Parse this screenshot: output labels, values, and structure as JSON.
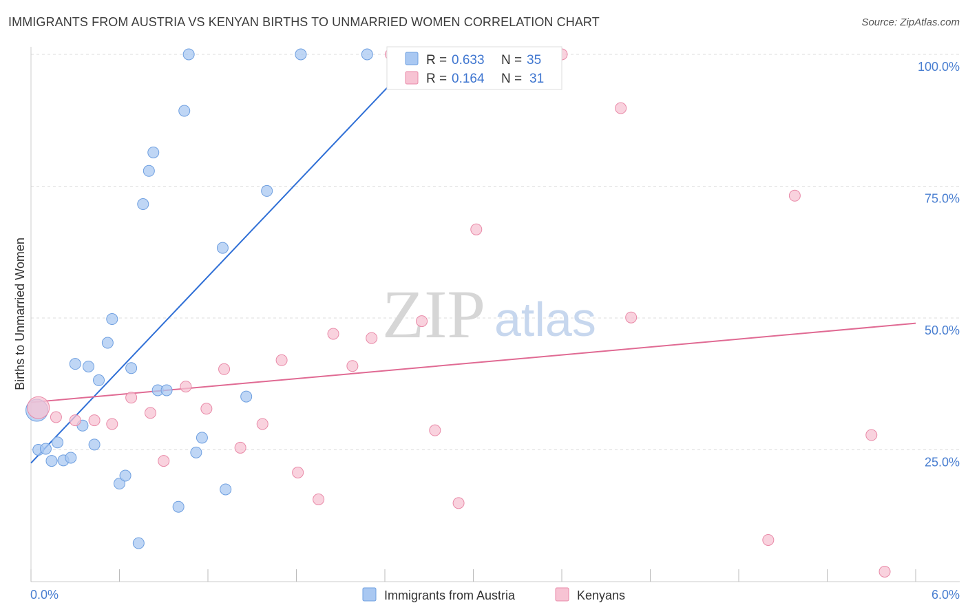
{
  "title": "IMMIGRANTS FROM AUSTRIA VS KENYAN BIRTHS TO UNMARRIED WOMEN CORRELATION CHART",
  "source": "Source: ZipAtlas.com",
  "watermark": {
    "zip": "ZIP",
    "atlas": "atlas"
  },
  "colors": {
    "blue": "#a9c8f2",
    "blue_stroke": "#6e9fe0",
    "blue_line": "#2f6fd6",
    "pink": "#f7c3d3",
    "pink_stroke": "#e98aa8",
    "pink_line": "#e06a93",
    "axis_text": "#4a7fd1"
  },
  "legend_box": {
    "rows": [
      {
        "r_label": "R =",
        "r_value": "0.633",
        "n_label": "N =",
        "n_value": "35"
      },
      {
        "r_label": "R =",
        "r_value": "0.164",
        "n_label": "N =",
        "n_value": "31"
      }
    ]
  },
  "bottom_legend": [
    "Immigrants from Austria",
    "Kenyans"
  ],
  "chart_data": {
    "type": "scatter",
    "title": "IMMIGRANTS FROM AUSTRIA VS KENYAN BIRTHS TO UNMARRIED WOMEN CORRELATION CHART",
    "xlabel": "",
    "ylabel": "Births to Unmarried Women",
    "xlim": [
      0,
      6
    ],
    "ylim": [
      0,
      100
    ],
    "x_tick_labels": [
      "0.0%",
      "6.0%"
    ],
    "y_tick_labels": [
      "100.0%",
      "75.0%",
      "50.0%",
      "25.0%"
    ],
    "y_ticks": [
      100,
      75,
      50,
      25
    ],
    "grid": true,
    "legend_position": "top-center",
    "series": [
      {
        "name": "Immigrants from Austria",
        "color": "#a9c8f2",
        "trend": {
          "r": 0.633,
          "n": 35,
          "x": [
            0.0,
            2.63
          ],
          "y": [
            22.5,
            100
          ]
        },
        "points": [
          {
            "x": 0.04,
            "y": 32.5,
            "big": true
          },
          {
            "x": 0.05,
            "y": 25.0
          },
          {
            "x": 0.1,
            "y": 25.2
          },
          {
            "x": 0.14,
            "y": 22.9
          },
          {
            "x": 0.18,
            "y": 26.4
          },
          {
            "x": 0.22,
            "y": 23.0
          },
          {
            "x": 0.27,
            "y": 23.5
          },
          {
            "x": 0.3,
            "y": 41.3
          },
          {
            "x": 0.35,
            "y": 29.6
          },
          {
            "x": 0.39,
            "y": 40.8
          },
          {
            "x": 0.43,
            "y": 26.0
          },
          {
            "x": 0.46,
            "y": 38.2
          },
          {
            "x": 0.52,
            "y": 45.3
          },
          {
            "x": 0.55,
            "y": 49.8
          },
          {
            "x": 0.6,
            "y": 18.6
          },
          {
            "x": 0.64,
            "y": 20.1
          },
          {
            "x": 0.68,
            "y": 40.5
          },
          {
            "x": 0.73,
            "y": 7.3
          },
          {
            "x": 0.76,
            "y": 71.6
          },
          {
            "x": 0.8,
            "y": 77.9
          },
          {
            "x": 0.83,
            "y": 81.4
          },
          {
            "x": 0.86,
            "y": 36.3
          },
          {
            "x": 0.92,
            "y": 36.3
          },
          {
            "x": 1.0,
            "y": 14.2
          },
          {
            "x": 1.04,
            "y": 89.3
          },
          {
            "x": 1.07,
            "y": 100.0
          },
          {
            "x": 1.12,
            "y": 24.5
          },
          {
            "x": 1.16,
            "y": 27.3
          },
          {
            "x": 1.3,
            "y": 63.3
          },
          {
            "x": 1.32,
            "y": 17.5
          },
          {
            "x": 1.46,
            "y": 35.1
          },
          {
            "x": 1.6,
            "y": 74.1
          },
          {
            "x": 1.83,
            "y": 100.0
          },
          {
            "x": 2.28,
            "y": 100.0
          },
          {
            "x": 3.13,
            "y": 100.0
          }
        ]
      },
      {
        "name": "Kenyans",
        "color": "#f7c3d3",
        "trend": {
          "r": 0.164,
          "n": 31,
          "x": [
            0.0,
            6.0
          ],
          "y": [
            34.0,
            49.0
          ]
        },
        "points": [
          {
            "x": 0.05,
            "y": 33.0,
            "big": true
          },
          {
            "x": 0.17,
            "y": 31.2
          },
          {
            "x": 0.3,
            "y": 30.6
          },
          {
            "x": 0.43,
            "y": 30.6
          },
          {
            "x": 0.55,
            "y": 29.9
          },
          {
            "x": 0.68,
            "y": 34.9
          },
          {
            "x": 0.81,
            "y": 32.0
          },
          {
            "x": 0.9,
            "y": 22.9
          },
          {
            "x": 1.05,
            "y": 37.0
          },
          {
            "x": 1.19,
            "y": 32.8
          },
          {
            "x": 1.31,
            "y": 40.3
          },
          {
            "x": 1.42,
            "y": 25.4
          },
          {
            "x": 1.57,
            "y": 29.9
          },
          {
            "x": 1.7,
            "y": 42.0
          },
          {
            "x": 1.81,
            "y": 20.7
          },
          {
            "x": 1.95,
            "y": 15.6
          },
          {
            "x": 2.05,
            "y": 47.0
          },
          {
            "x": 2.18,
            "y": 40.9
          },
          {
            "x": 2.31,
            "y": 46.2
          },
          {
            "x": 2.44,
            "y": 100.0
          },
          {
            "x": 2.65,
            "y": 49.4
          },
          {
            "x": 2.74,
            "y": 28.7
          },
          {
            "x": 2.9,
            "y": 14.9
          },
          {
            "x": 3.02,
            "y": 66.8
          },
          {
            "x": 3.6,
            "y": 100.0
          },
          {
            "x": 4.0,
            "y": 89.8
          },
          {
            "x": 4.07,
            "y": 50.1
          },
          {
            "x": 5.0,
            "y": 7.9
          },
          {
            "x": 5.18,
            "y": 73.2
          },
          {
            "x": 5.7,
            "y": 27.8
          },
          {
            "x": 5.79,
            "y": 1.9
          }
        ]
      }
    ]
  }
}
